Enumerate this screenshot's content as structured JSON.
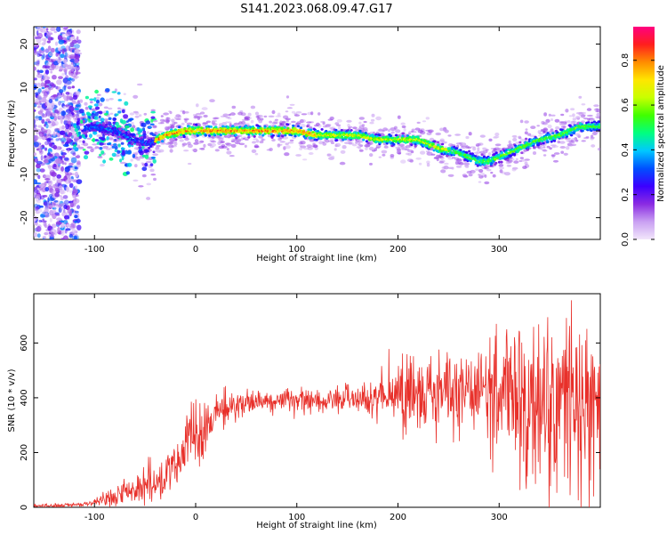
{
  "title": "S141.2023.068.09.47.G17",
  "chart_data": [
    {
      "type": "heatmap",
      "xlabel": "Height of straight line (km)",
      "ylabel": "Frequency (Hz)",
      "xlim": [
        -160,
        400
      ],
      "ylim": [
        -25,
        24
      ],
      "xticks": [
        -100,
        0,
        100,
        200,
        300
      ],
      "yticks": [
        -20,
        -10,
        0,
        10,
        20
      ],
      "colorbar": {
        "label": "Normalized spectral amplitude",
        "ticks": [
          0.0,
          0.2,
          0.4,
          0.6,
          0.8
        ],
        "range": [
          0,
          0.95
        ],
        "colormap": [
          "#f2e6fb",
          "#c9a0f2",
          "#8a2be2",
          "#3b00ff",
          "#0050ff",
          "#00c8ff",
          "#00ff80",
          "#40ff00",
          "#c8ff00",
          "#ffe600",
          "#ff8c00",
          "#ff1e1e",
          "#ff0080"
        ]
      },
      "ridge": {
        "x": [
          -120,
          -100,
          -80,
          -60,
          -45,
          -30,
          -10,
          0,
          20,
          40,
          60,
          80,
          100,
          120,
          140,
          160,
          180,
          200,
          220,
          240,
          260,
          280,
          290,
          300,
          320,
          340,
          360,
          380,
          395
        ],
        "y": [
          0,
          1,
          0,
          -2,
          -3,
          -1,
          0,
          0,
          0,
          0,
          0,
          0,
          0,
          -1,
          -1,
          -1,
          -2,
          -2,
          -2,
          -4,
          -5,
          -7,
          -7,
          -6,
          -4,
          -2,
          -1,
          1,
          1
        ]
      }
    },
    {
      "type": "line",
      "xlabel": "Height of straight line (km)",
      "ylabel": "SNR (10 * v/v)",
      "xlim": [
        -160,
        400
      ],
      "ylim": [
        0,
        780
      ],
      "xticks": [
        -100,
        0,
        100,
        200,
        300
      ],
      "yticks": [
        0,
        200,
        400,
        600
      ],
      "line_color": "#e8302a",
      "envelope": {
        "x": [
          -160,
          -110,
          -100,
          -80,
          -60,
          -40,
          -20,
          -5,
          0,
          10,
          20,
          40,
          60,
          80,
          100,
          120,
          150,
          180,
          200,
          230,
          260,
          290,
          310,
          330,
          350,
          370,
          385,
          395
        ],
        "mean": [
          5,
          10,
          15,
          40,
          75,
          100,
          140,
          240,
          250,
          295,
          340,
          370,
          385,
          390,
          395,
          392,
          395,
          400,
          405,
          410,
          420,
          425,
          420,
          380,
          370,
          360,
          380,
          390
        ],
        "spread": [
          4,
          5,
          8,
          25,
          35,
          45,
          60,
          70,
          70,
          60,
          45,
          35,
          30,
          28,
          28,
          28,
          30,
          45,
          70,
          85,
          100,
          120,
          150,
          180,
          190,
          200,
          210,
          180
        ]
      }
    }
  ]
}
